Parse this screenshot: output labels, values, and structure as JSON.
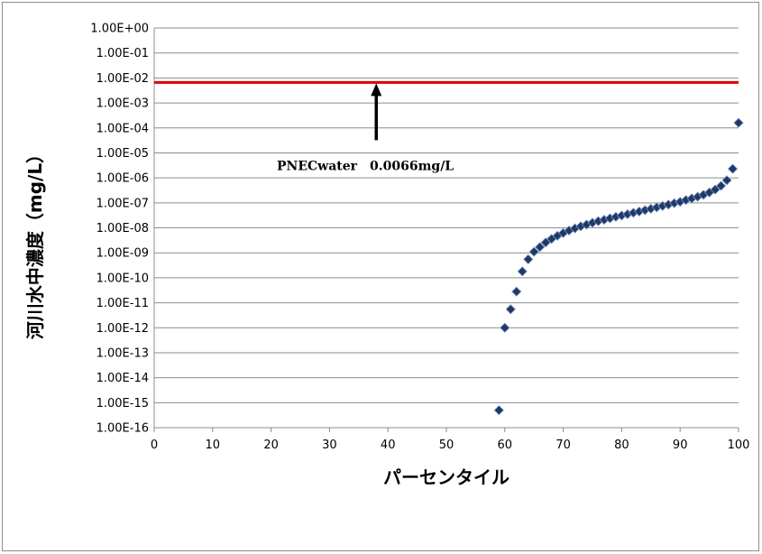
{
  "chart_data": {
    "type": "scatter",
    "xlabel": "パーセンタイル",
    "ylabel": "河川水中濃度（mg/L）",
    "xlim": [
      0,
      100
    ],
    "ylim": [
      -16,
      0
    ],
    "y_scale": "log10",
    "x_ticks": [
      "0",
      "10",
      "20",
      "30",
      "40",
      "50",
      "60",
      "70",
      "80",
      "90",
      "100"
    ],
    "y_ticks": [
      "1.00E+00",
      "1.00E-01",
      "1.00E-02",
      "1.00E-03",
      "1.00E-04",
      "1.00E-05",
      "1.00E-06",
      "1.00E-07",
      "1.00E-08",
      "1.00E-09",
      "1.00E-10",
      "1.00E-11",
      "1.00E-12",
      "1.00E-13",
      "1.00E-14",
      "1.00E-15",
      "1.00E-16"
    ],
    "grid": {
      "horizontal": true,
      "vertical": false
    },
    "series": [
      {
        "color": "#1f3864",
        "marker": "diamond",
        "points": [
          [
            59,
            5e-16
          ],
          [
            60,
            1e-12
          ],
          [
            61,
            5.5e-12
          ],
          [
            62,
            2.8e-11
          ],
          [
            63,
            1.8e-10
          ],
          [
            64,
            5.5e-10
          ],
          [
            65,
            1.1e-09
          ],
          [
            66,
            1.7e-09
          ],
          [
            67,
            2.6e-09
          ],
          [
            68,
            3.6e-09
          ],
          [
            69,
            4.8e-09
          ],
          [
            70,
            6.2e-09
          ],
          [
            71,
            7.8e-09
          ],
          [
            72,
            9.5e-09
          ],
          [
            73,
            1.15e-08
          ],
          [
            74,
            1.35e-08
          ],
          [
            75,
            1.6e-08
          ],
          [
            76,
            1.85e-08
          ],
          [
            77,
            2.1e-08
          ],
          [
            78,
            2.4e-08
          ],
          [
            79,
            2.75e-08
          ],
          [
            80,
            3.1e-08
          ],
          [
            81,
            3.5e-08
          ],
          [
            82,
            4e-08
          ],
          [
            83,
            4.5e-08
          ],
          [
            84,
            5.1e-08
          ],
          [
            85,
            5.8e-08
          ],
          [
            86,
            6.6e-08
          ],
          [
            87,
            7.5e-08
          ],
          [
            88,
            8.5e-08
          ],
          [
            89,
            9.7e-08
          ],
          [
            90,
            1.1e-07
          ],
          [
            91,
            1.3e-07
          ],
          [
            92,
            1.5e-07
          ],
          [
            93,
            1.75e-07
          ],
          [
            94,
            2.1e-07
          ],
          [
            95,
            2.6e-07
          ],
          [
            96,
            3.4e-07
          ],
          [
            97,
            4.8e-07
          ],
          [
            98,
            8e-07
          ],
          [
            99,
            2.3e-06
          ],
          [
            100,
            0.00016
          ]
        ]
      }
    ],
    "reference_line": {
      "value": 0.0066,
      "color": "#e00000"
    },
    "annotation": {
      "text": "PNECwater　0.0066mg/L",
      "arrow_x": 38
    }
  }
}
